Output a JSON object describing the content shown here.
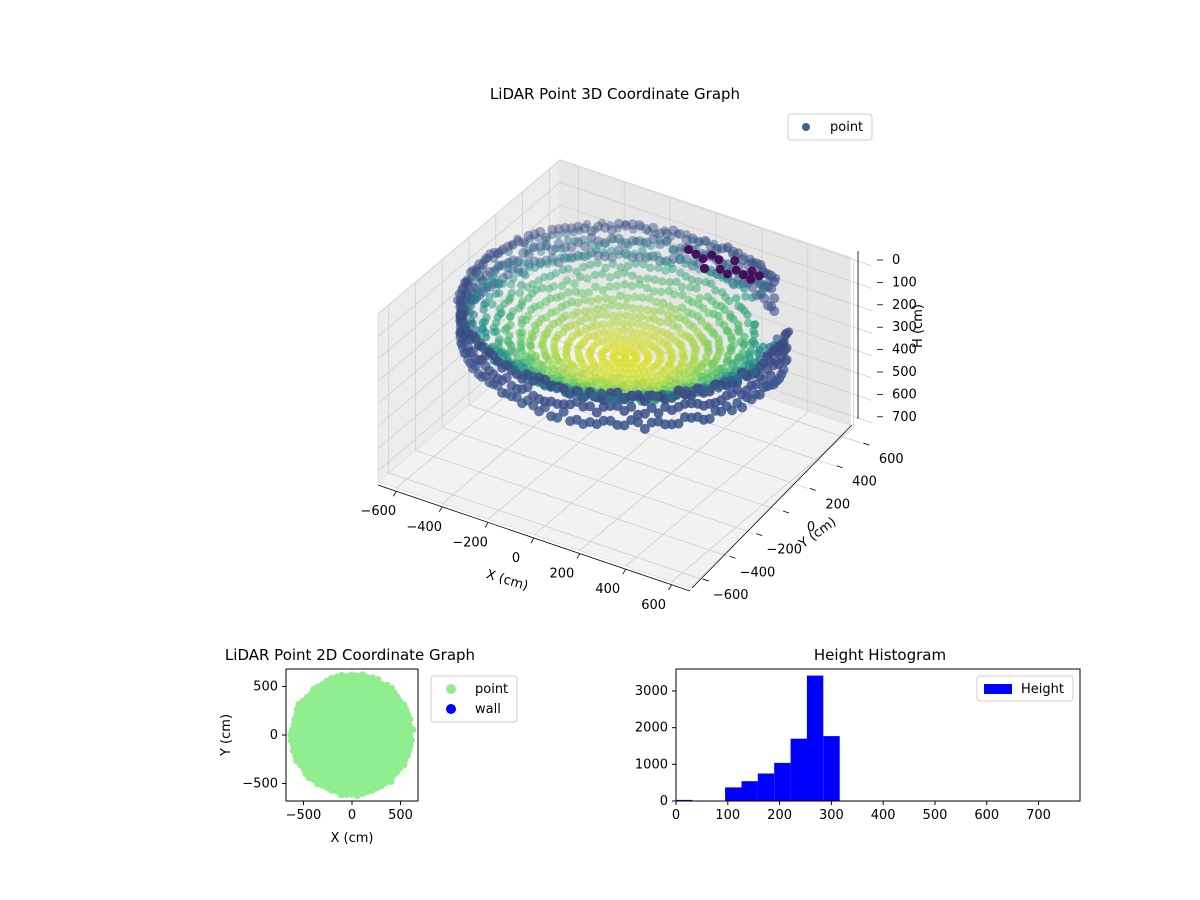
{
  "chart_data": [
    {
      "type": "scatter",
      "projection": "3d",
      "title": "LiDAR Point 3D Coordinate Graph",
      "xlabel": "X (cm)",
      "ylabel": "Y (cm)",
      "zlabel": "H (cm)",
      "xticks": [
        -600,
        -400,
        -200,
        0,
        200,
        400,
        600
      ],
      "yticks": [
        -600,
        -400,
        -200,
        0,
        200,
        400,
        600
      ],
      "zticks": [
        0,
        100,
        200,
        300,
        400,
        500,
        600,
        700
      ],
      "zaxis_inverted": true,
      "grid": true,
      "legend": {
        "position": "top-right",
        "entries": [
          {
            "label": "point",
            "color": "#3b628d"
          }
        ]
      },
      "colormap": "viridis",
      "bowl": {
        "rim_radius": 620,
        "rim_height": 100,
        "center_height": 300,
        "gap_angle_from_deg": 20,
        "gap_angle_to_deg": 55
      },
      "dark_cluster": {
        "x_from": -50,
        "x_to": 250,
        "y": 560,
        "h": 120
      }
    },
    {
      "type": "scatter",
      "title": "LiDAR Point 2D Coordinate Graph",
      "xlabel": "X (cm)",
      "ylabel": "Y (cm)",
      "xticks": [
        -500,
        0,
        500
      ],
      "yticks": [
        -500,
        0,
        500
      ],
      "xlim": [
        -680,
        680
      ],
      "ylim": [
        -680,
        680
      ],
      "grid": false,
      "legend": {
        "position": "outside-right",
        "entries": [
          {
            "label": "point",
            "color": "#90ee90"
          },
          {
            "label": "wall",
            "color": "#0000ff"
          }
        ]
      },
      "disk": {
        "radius": 620,
        "center": [
          0,
          0
        ],
        "color": "#90ee90"
      }
    },
    {
      "type": "bar",
      "subtype": "histogram",
      "title": "Height Histogram",
      "xlabel": "",
      "ylabel": "",
      "xlim": [
        0,
        780
      ],
      "ylim": [
        0,
        3600
      ],
      "xticks": [
        0,
        100,
        200,
        300,
        400,
        500,
        600,
        700
      ],
      "yticks": [
        0,
        1000,
        2000,
        3000
      ],
      "grid": false,
      "color": "#0000ff",
      "legend": {
        "position": "top-right",
        "entries": [
          {
            "label": "Height",
            "color": "#0000ff"
          }
        ]
      },
      "bins": [
        {
          "from": 0,
          "to": 31.6,
          "count": 30
        },
        {
          "from": 31.6,
          "to": 63.2,
          "count": 0
        },
        {
          "from": 63.2,
          "to": 94.8,
          "count": 0
        },
        {
          "from": 94.8,
          "to": 126.4,
          "count": 370
        },
        {
          "from": 126.4,
          "to": 158,
          "count": 540
        },
        {
          "from": 158,
          "to": 189.6,
          "count": 750
        },
        {
          "from": 189.6,
          "to": 221.2,
          "count": 1040
        },
        {
          "from": 221.2,
          "to": 252.8,
          "count": 1700
        },
        {
          "from": 252.8,
          "to": 284.4,
          "count": 3420
        },
        {
          "from": 284.4,
          "to": 316,
          "count": 1770
        }
      ]
    }
  ]
}
